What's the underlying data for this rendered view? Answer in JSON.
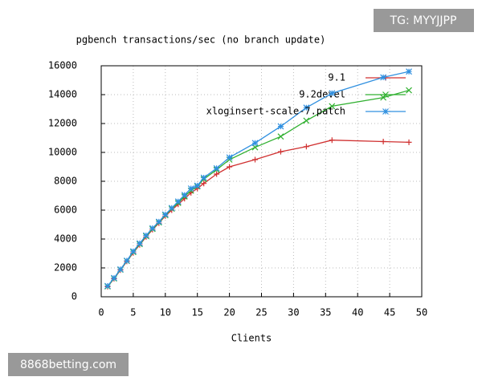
{
  "chart_data": {
    "type": "line",
    "title": "pgbench transactions/sec (no branch update)",
    "x_label": "Clients",
    "x": [
      1,
      2,
      3,
      4,
      5,
      6,
      7,
      8,
      9,
      10,
      11,
      12,
      13,
      14,
      15,
      16,
      18,
      20,
      24,
      28,
      32,
      36,
      44,
      48
    ],
    "series": [
      {
        "name": "9.1",
        "color": "#d03030",
        "marker": "+",
        "values": [
          700,
          1250,
          1850,
          2450,
          3050,
          3600,
          4150,
          4650,
          5100,
          5600,
          6000,
          6400,
          6800,
          7200,
          7500,
          7850,
          8500,
          9000,
          9500,
          10050,
          10400,
          10850,
          10750,
          10700
        ]
      },
      {
        "name": "9.2devel",
        "color": "#30b030",
        "marker": "x",
        "values": [
          720,
          1270,
          1880,
          2480,
          3100,
          3650,
          4200,
          4700,
          5150,
          5650,
          6100,
          6500,
          6950,
          7350,
          7650,
          8150,
          8800,
          9500,
          10350,
          11100,
          12200,
          13200,
          13800,
          14300
        ]
      },
      {
        "name": "xloginsert-scale-7.patch",
        "color": "#3090e0",
        "marker": "*",
        "values": [
          750,
          1300,
          1900,
          2500,
          3150,
          3700,
          4250,
          4750,
          5200,
          5700,
          6150,
          6600,
          7050,
          7500,
          7700,
          8250,
          8900,
          9650,
          10650,
          11800,
          13100,
          14100,
          15200,
          15600
        ]
      }
    ],
    "xlim": [
      0,
      50
    ],
    "xticks": [
      0,
      5,
      10,
      15,
      20,
      25,
      30,
      35,
      40,
      45,
      50
    ],
    "ylim": [
      0,
      16000
    ],
    "yticks": [
      0,
      2000,
      4000,
      6000,
      8000,
      10000,
      12000,
      14000,
      16000
    ],
    "grid": true,
    "legend": "top-right"
  },
  "overlays": [
    "TG: MYYJJPP",
    "8868betting.com"
  ]
}
